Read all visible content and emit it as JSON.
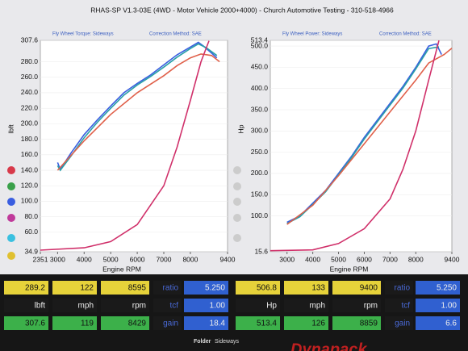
{
  "header": {
    "title": "RHAS-SP V1.3-03E  (4WD - Motor Vehicle 2000+4000) - Church Automotive Testing - 310-518-4966"
  },
  "chart_data": [
    {
      "type": "line",
      "subtitle": "Fly Wheel Torque: Sideways",
      "note": "Correction Method: SAE",
      "x_label": "Engine RPM",
      "y_label": "lbft",
      "xlim": [
        2351,
        9400
      ],
      "xticks": [
        2351,
        3000,
        4000,
        5000,
        6000,
        7000,
        8000,
        9400
      ],
      "ylim": [
        34.9,
        307.6
      ],
      "yticks": [
        34.9,
        {
          "value": 60,
          "label": "60.0"
        },
        {
          "value": 80,
          "label": "80.0"
        },
        {
          "value": 100,
          "label": "100.0"
        },
        {
          "value": 120,
          "label": "120.0"
        },
        {
          "value": 140,
          "label": "140.0"
        },
        {
          "value": 160,
          "label": "160.0"
        },
        {
          "value": 180,
          "label": "180.0"
        },
        {
          "value": 200,
          "label": "200.0"
        },
        {
          "value": 220,
          "label": "220.0"
        },
        {
          "value": 240,
          "label": "240.0"
        },
        {
          "value": 260,
          "label": "260.0"
        },
        {
          "value": 280,
          "label": "280.0"
        },
        307.6
      ],
      "series": [
        {
          "color": "#3a5ee0",
          "x": [
            3000,
            3100,
            3500,
            4000,
            4500,
            5000,
            5500,
            6000,
            6500,
            7000,
            7500,
            8000,
            8300,
            8500,
            8800,
            9000
          ],
          "values": [
            150,
            141,
            162,
            186,
            205,
            223,
            240,
            252,
            263,
            276,
            289,
            299,
            305,
            300,
            291,
            285
          ]
        },
        {
          "color": "#2aa0a8",
          "x": [
            3000,
            3100,
            3500,
            4000,
            4500,
            5000,
            5500,
            6000,
            6500,
            7000,
            7500,
            8000,
            8300,
            8600,
            9000
          ],
          "values": [
            146,
            140,
            158,
            182,
            202,
            220,
            237,
            250,
            261,
            273,
            286,
            297,
            303,
            298,
            288
          ]
        },
        {
          "color": "#e0604a",
          "x": [
            3000,
            4000,
            5000,
            6000,
            7000,
            7500,
            8000,
            8400,
            8800,
            9100
          ],
          "values": [
            140,
            178,
            212,
            240,
            262,
            275,
            285,
            290,
            288,
            280
          ]
        },
        {
          "color": "#d0306a",
          "x": [
            2351,
            4000,
            5000,
            6000,
            7000,
            7500,
            8000,
            8400,
            8700
          ],
          "values": [
            37,
            40,
            48,
            70,
            120,
            170,
            230,
            280,
            307
          ]
        }
      ]
    },
    {
      "type": "line",
      "subtitle": "Fly Wheel Power: Sideways",
      "note": "Correction Method: SAE",
      "x_label": "Engine RPM",
      "y_label": "Hp",
      "xlim": [
        2351,
        9400
      ],
      "xticks": [
        3000,
        4000,
        5000,
        6000,
        7000,
        8000,
        9400
      ],
      "ylim": [
        15.6,
        513.4
      ],
      "yticks": [
        15.6,
        {
          "value": 100,
          "label": "100.0"
        },
        {
          "value": 150,
          "label": "150.0"
        },
        {
          "value": 200,
          "label": "200.0"
        },
        {
          "value": 250,
          "label": "250.0"
        },
        {
          "value": 300,
          "label": "300.0"
        },
        {
          "value": 350,
          "label": "350.0"
        },
        {
          "value": 400,
          "label": "400.0"
        },
        {
          "value": 450,
          "label": "450.0"
        },
        {
          "value": 500,
          "label": "500.0"
        },
        513.4
      ],
      "series": [
        {
          "color": "#3a5ee0",
          "x": [
            3000,
            3500,
            4000,
            4500,
            5000,
            5500,
            6000,
            6500,
            7000,
            7500,
            8000,
            8500,
            8800,
            9000
          ],
          "values": [
            85,
            100,
            130,
            160,
            200,
            240,
            285,
            325,
            365,
            405,
            450,
            500,
            505,
            480
          ]
        },
        {
          "color": "#2aa0a8",
          "x": [
            3000,
            3500,
            4000,
            4500,
            5000,
            5500,
            6000,
            6500,
            7000,
            7500,
            8000,
            8500,
            8900
          ],
          "values": [
            82,
            98,
            127,
            157,
            197,
            237,
            281,
            321,
            361,
            401,
            446,
            494,
            498
          ]
        },
        {
          "color": "#e0604a",
          "x": [
            3000,
            4000,
            5000,
            6000,
            7000,
            8000,
            8500,
            9100,
            9400
          ],
          "values": [
            80,
            125,
            195,
            270,
            345,
            420,
            460,
            480,
            495
          ]
        },
        {
          "color": "#d0306a",
          "x": [
            2351,
            4000,
            5000,
            6000,
            7000,
            7500,
            8000,
            8500,
            8900
          ],
          "values": [
            18,
            20,
            35,
            70,
            140,
            210,
            300,
            420,
            513
          ]
        }
      ]
    }
  ],
  "panel": {
    "left": [
      [
        "289.2",
        "122",
        "8595",
        "ratio",
        "5.250"
      ],
      [
        "lbft",
        "mph",
        "rpm",
        "tcf",
        "1.00"
      ],
      [
        "307.6",
        "119",
        "8429",
        "gain",
        "18.4"
      ]
    ],
    "right": [
      [
        "506.8",
        "133",
        "9400",
        "ratio",
        "5.250"
      ],
      [
        "Hp",
        "mph",
        "rpm",
        "tcf",
        "1.00"
      ],
      [
        "513.4",
        "126",
        "8859",
        "gain",
        "6.6"
      ]
    ]
  },
  "footer": {
    "folder_label": "Folder",
    "folder": "Sideways",
    "brand": "Dynapack"
  }
}
